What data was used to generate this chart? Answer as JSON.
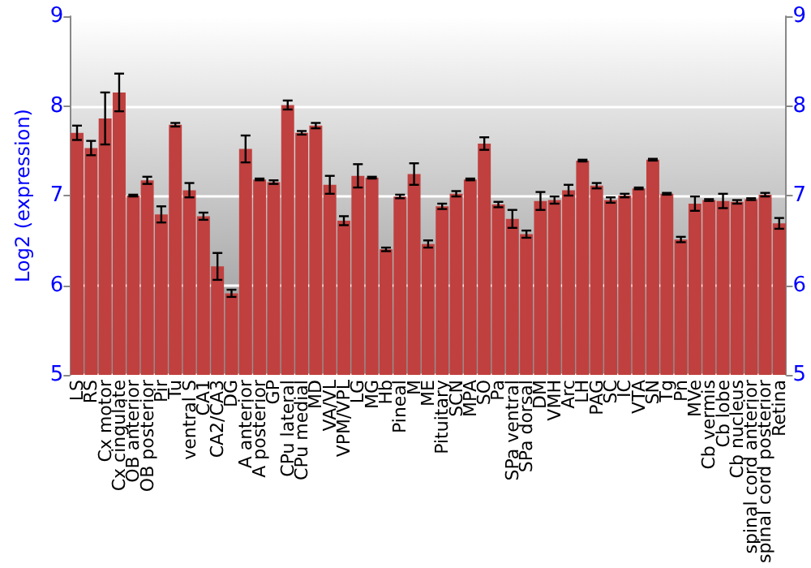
{
  "chart_data": {
    "type": "bar",
    "ylabel": "Log2 (expression)",
    "categories": [
      "LS",
      "RS",
      "Cx motor",
      "Cx cingulate",
      "OB anterior",
      "OB posterior",
      "Pir",
      "Tu",
      "ventral S",
      "CA1",
      "CA2/CA3",
      "DG",
      "A anterior",
      "A posterior",
      "GP",
      "CPu lateral",
      "CPu medial",
      "MD",
      "VA/VL",
      "VPM/VPL",
      "LG",
      "MG",
      "Hb",
      "Pineal",
      "M",
      "ME",
      "Pituitary",
      "SCN",
      "MPA",
      "SO",
      "Pa",
      "SPa ventral",
      "SPa dorsal",
      "DM",
      "VMH",
      "Arc",
      "LH",
      "PAG",
      "SC",
      "IC",
      "VTA",
      "SN",
      "Tg",
      "Pn",
      "MVe",
      "Cb vermis",
      "Cb lobe",
      "Cb nucleus",
      "spinal cord anterior",
      "spinal cord posterior",
      "Retina"
    ],
    "values": [
      7.7,
      7.53,
      7.86,
      8.15,
      7.0,
      7.17,
      6.79,
      7.79,
      7.06,
      6.77,
      6.21,
      5.91,
      7.52,
      7.18,
      7.15,
      8.01,
      7.7,
      7.78,
      7.12,
      6.72,
      7.22,
      7.2,
      6.4,
      6.99,
      7.24,
      6.46,
      6.88,
      7.02,
      7.18,
      7.58,
      6.9,
      6.74,
      6.57,
      6.94,
      6.95,
      7.06,
      7.39,
      7.11,
      6.95,
      7.0,
      7.08,
      7.4,
      7.02,
      6.51,
      6.91,
      6.95,
      6.94,
      6.93,
      6.96,
      7.01,
      6.69
    ],
    "errors": [
      0.08,
      0.08,
      0.29,
      0.21,
      0.01,
      0.04,
      0.09,
      0.02,
      0.08,
      0.04,
      0.15,
      0.04,
      0.15,
      0.01,
      0.02,
      0.05,
      0.02,
      0.03,
      0.1,
      0.05,
      0.13,
      0.01,
      0.02,
      0.02,
      0.12,
      0.04,
      0.03,
      0.03,
      0.01,
      0.07,
      0.03,
      0.1,
      0.04,
      0.1,
      0.04,
      0.06,
      0.01,
      0.03,
      0.03,
      0.02,
      0.01,
      0.01,
      0.01,
      0.03,
      0.08,
      0.01,
      0.08,
      0.02,
      0.01,
      0.02,
      0.06
    ],
    "color": "#c0403f",
    "ylim": [
      5,
      9
    ],
    "yticks": [
      5,
      6,
      7,
      8,
      9
    ],
    "y2lim": [
      5,
      9
    ],
    "y2ticks": [
      5,
      6,
      7,
      8,
      9
    ],
    "grid": "y"
  }
}
